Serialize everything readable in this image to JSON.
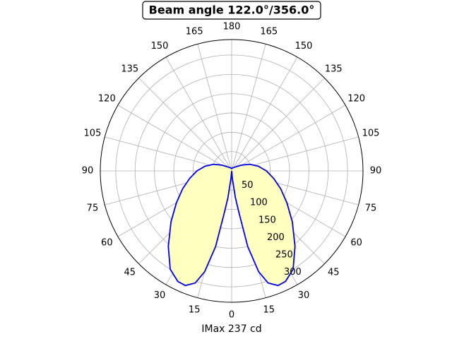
{
  "chart_data": {
    "type": "polar",
    "title": "Beam angle 122.0°/356.0°",
    "xlabel": "IMax 237 cd",
    "rlim": [
      0,
      340
    ],
    "rticks": [
      50,
      100,
      150,
      200,
      250,
      300
    ],
    "thetaticks": [
      0,
      15,
      30,
      45,
      60,
      75,
      90,
      105,
      120,
      135,
      150,
      165,
      180,
      {
        "value": 195,
        "label": "165"
      },
      {
        "value": 210,
        "label": "150"
      },
      {
        "value": 225,
        "label": "135"
      },
      {
        "value": 240,
        "label": "120"
      },
      {
        "value": 255,
        "label": "105"
      },
      {
        "value": 270,
        "label": "90"
      },
      {
        "value": 285,
        "label": "75"
      },
      {
        "value": 300,
        "label": "60"
      },
      {
        "value": 315,
        "label": "45"
      },
      {
        "value": 330,
        "label": "30"
      },
      {
        "value": 345,
        "label": "15"
      }
    ],
    "grid": true,
    "series": [
      {
        "color": "#0000ee",
        "fill": "#ffffc0",
        "theta": [
          -180,
          -165,
          -150,
          -135,
          -120,
          -110,
          -100,
          -90,
          -80,
          -70,
          -60,
          -50,
          -40,
          -32,
          -26,
          -22,
          -18,
          -15,
          -12,
          -10,
          -8,
          -5,
          0,
          5,
          8,
          10,
          12,
          15,
          18,
          22,
          26,
          32,
          40,
          50,
          60,
          70,
          80,
          90,
          100,
          110,
          120,
          135,
          150,
          165,
          180
        ],
        "values": [
          5,
          8,
          10,
          15,
          30,
          50,
          70,
          90,
          110,
          135,
          165,
          205,
          255,
          300,
          318,
          320,
          305,
          270,
          200,
          110,
          70,
          20,
          0,
          20,
          70,
          110,
          200,
          270,
          305,
          320,
          318,
          300,
          255,
          205,
          165,
          135,
          110,
          90,
          70,
          50,
          30,
          15,
          10,
          8,
          5
        ]
      }
    ]
  }
}
